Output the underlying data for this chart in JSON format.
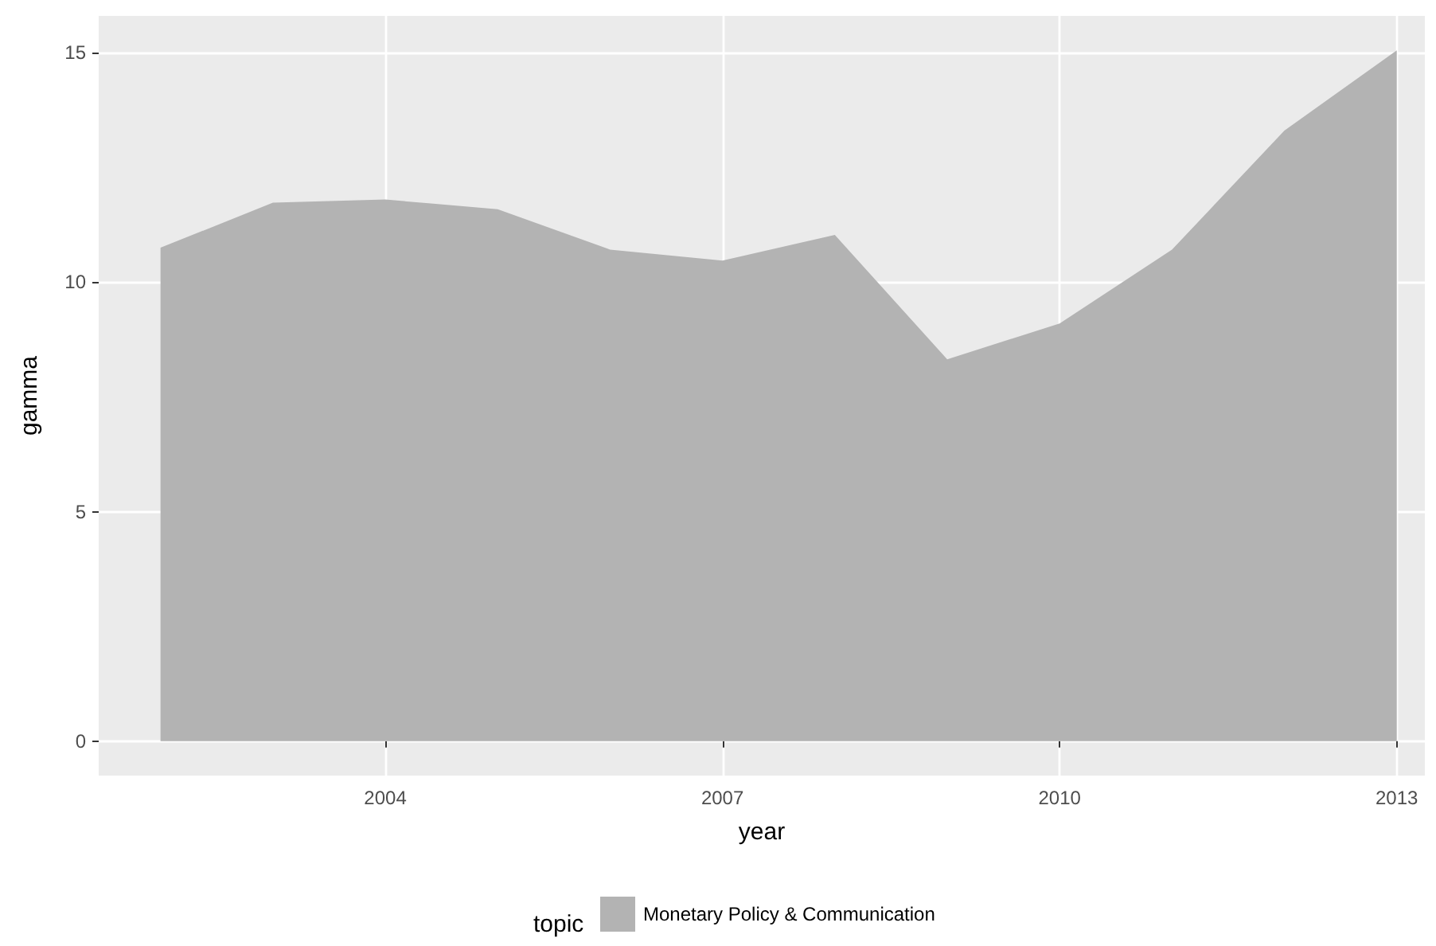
{
  "chart_data": {
    "type": "area",
    "xlabel": "year",
    "ylabel": "gamma",
    "legend_title": "topic",
    "legend": "bottom",
    "grid": true,
    "x": [
      2002,
      2003,
      2004,
      2005,
      2006,
      2007,
      2008,
      2009,
      2010,
      2011,
      2012,
      2013
    ],
    "series": [
      {
        "name": "Monetary Policy & Communication",
        "color": "#b3b3b3",
        "values": [
          10.75,
          11.73,
          11.8,
          11.59,
          10.71,
          10.47,
          11.03,
          8.32,
          9.1,
          10.71,
          13.3,
          15.05
        ]
      }
    ],
    "xlim": [
      2001.45,
      2013.25
    ],
    "xticks": [
      2004,
      2007,
      2010,
      2013
    ],
    "ylim": [
      -0.75,
      15.8
    ],
    "yticks": [
      0,
      5,
      10,
      15
    ]
  }
}
